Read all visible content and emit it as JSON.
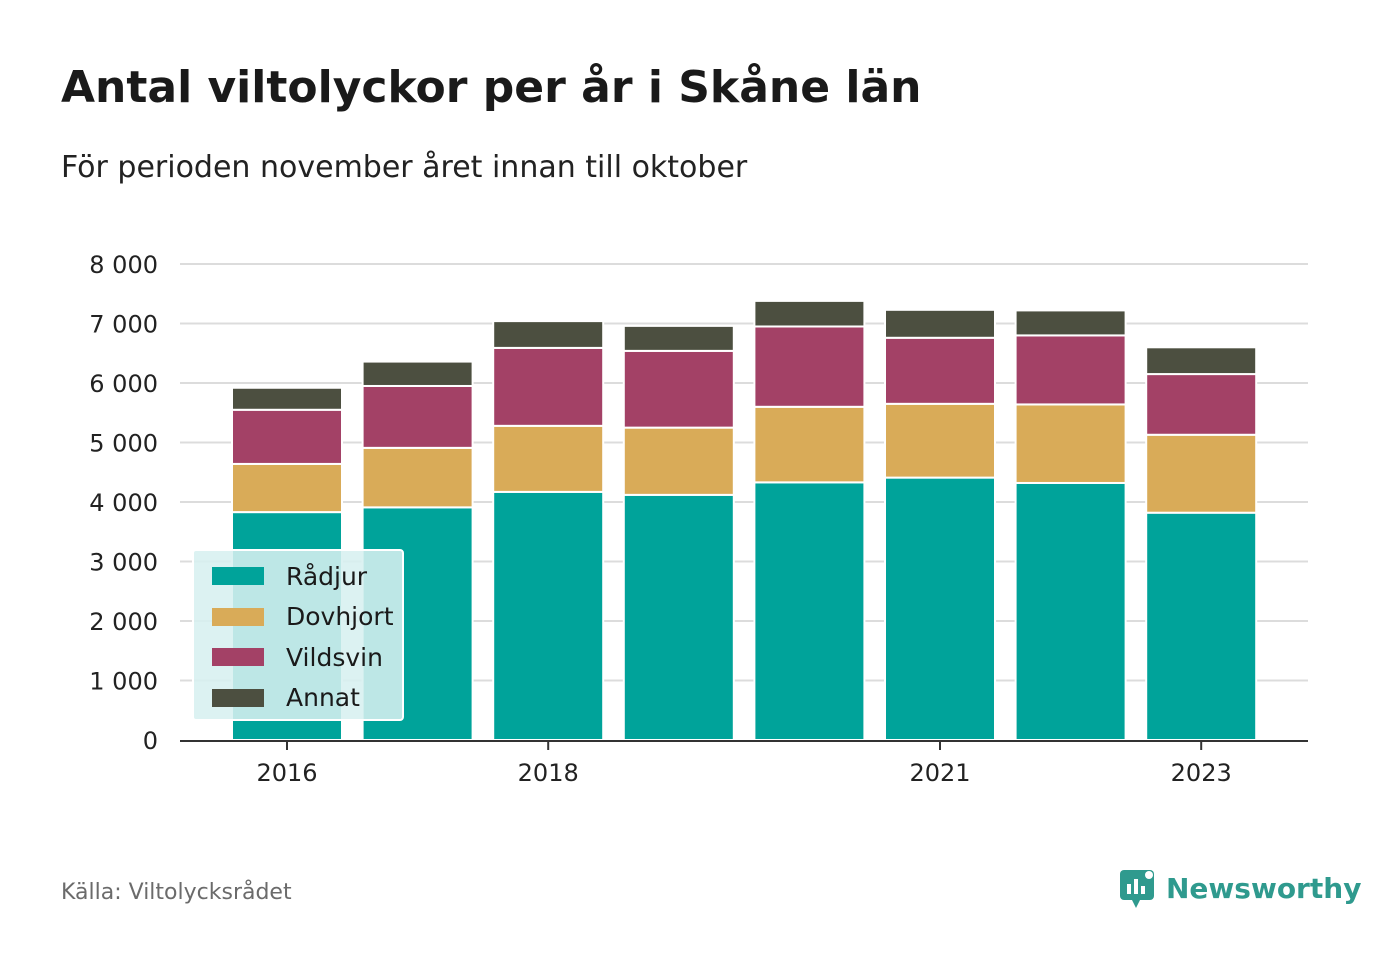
{
  "title": "Antal viltolyckor per år i Skåne län",
  "subtitle": "För perioden november året innan till oktober",
  "source": "Källa: Viltolycksrådet",
  "brand": {
    "name": "Newsworthy",
    "icon": "newsworthy-logo-icon",
    "color": "#2f9a8e"
  },
  "chart_data": {
    "type": "bar",
    "stacked": true,
    "title": "Antal viltolyckor per år i Skåne län",
    "subtitle": "För perioden november året innan till oktober",
    "categories": [
      "2016",
      "2017",
      "2018",
      "2019",
      "2020",
      "2021",
      "2022",
      "2023"
    ],
    "x_tick_labels": [
      "2016",
      "",
      "2018",
      "",
      "",
      "2021",
      "",
      "2023"
    ],
    "y_ticks": [
      "0",
      "1 000",
      "2 000",
      "3 000",
      "4 000",
      "5 000",
      "6 000",
      "7 000",
      "8 000"
    ],
    "ylim": [
      0,
      8000
    ],
    "grid": true,
    "legend_position": "bottom-left",
    "series": [
      {
        "name": "Rådjur",
        "color": "#00a39a",
        "values": [
          3830,
          3910,
          4170,
          4120,
          4330,
          4410,
          4320,
          3820
        ]
      },
      {
        "name": "Dovhjort",
        "color": "#d9ab58",
        "values": [
          810,
          1000,
          1110,
          1130,
          1270,
          1240,
          1320,
          1310
        ]
      },
      {
        "name": "Vildsvin",
        "color": "#a34166",
        "values": [
          910,
          1040,
          1310,
          1290,
          1350,
          1110,
          1160,
          1020
        ]
      },
      {
        "name": "Annat",
        "color": "#4c4f40",
        "values": [
          370,
          410,
          450,
          420,
          430,
          470,
          420,
          450
        ]
      }
    ]
  }
}
